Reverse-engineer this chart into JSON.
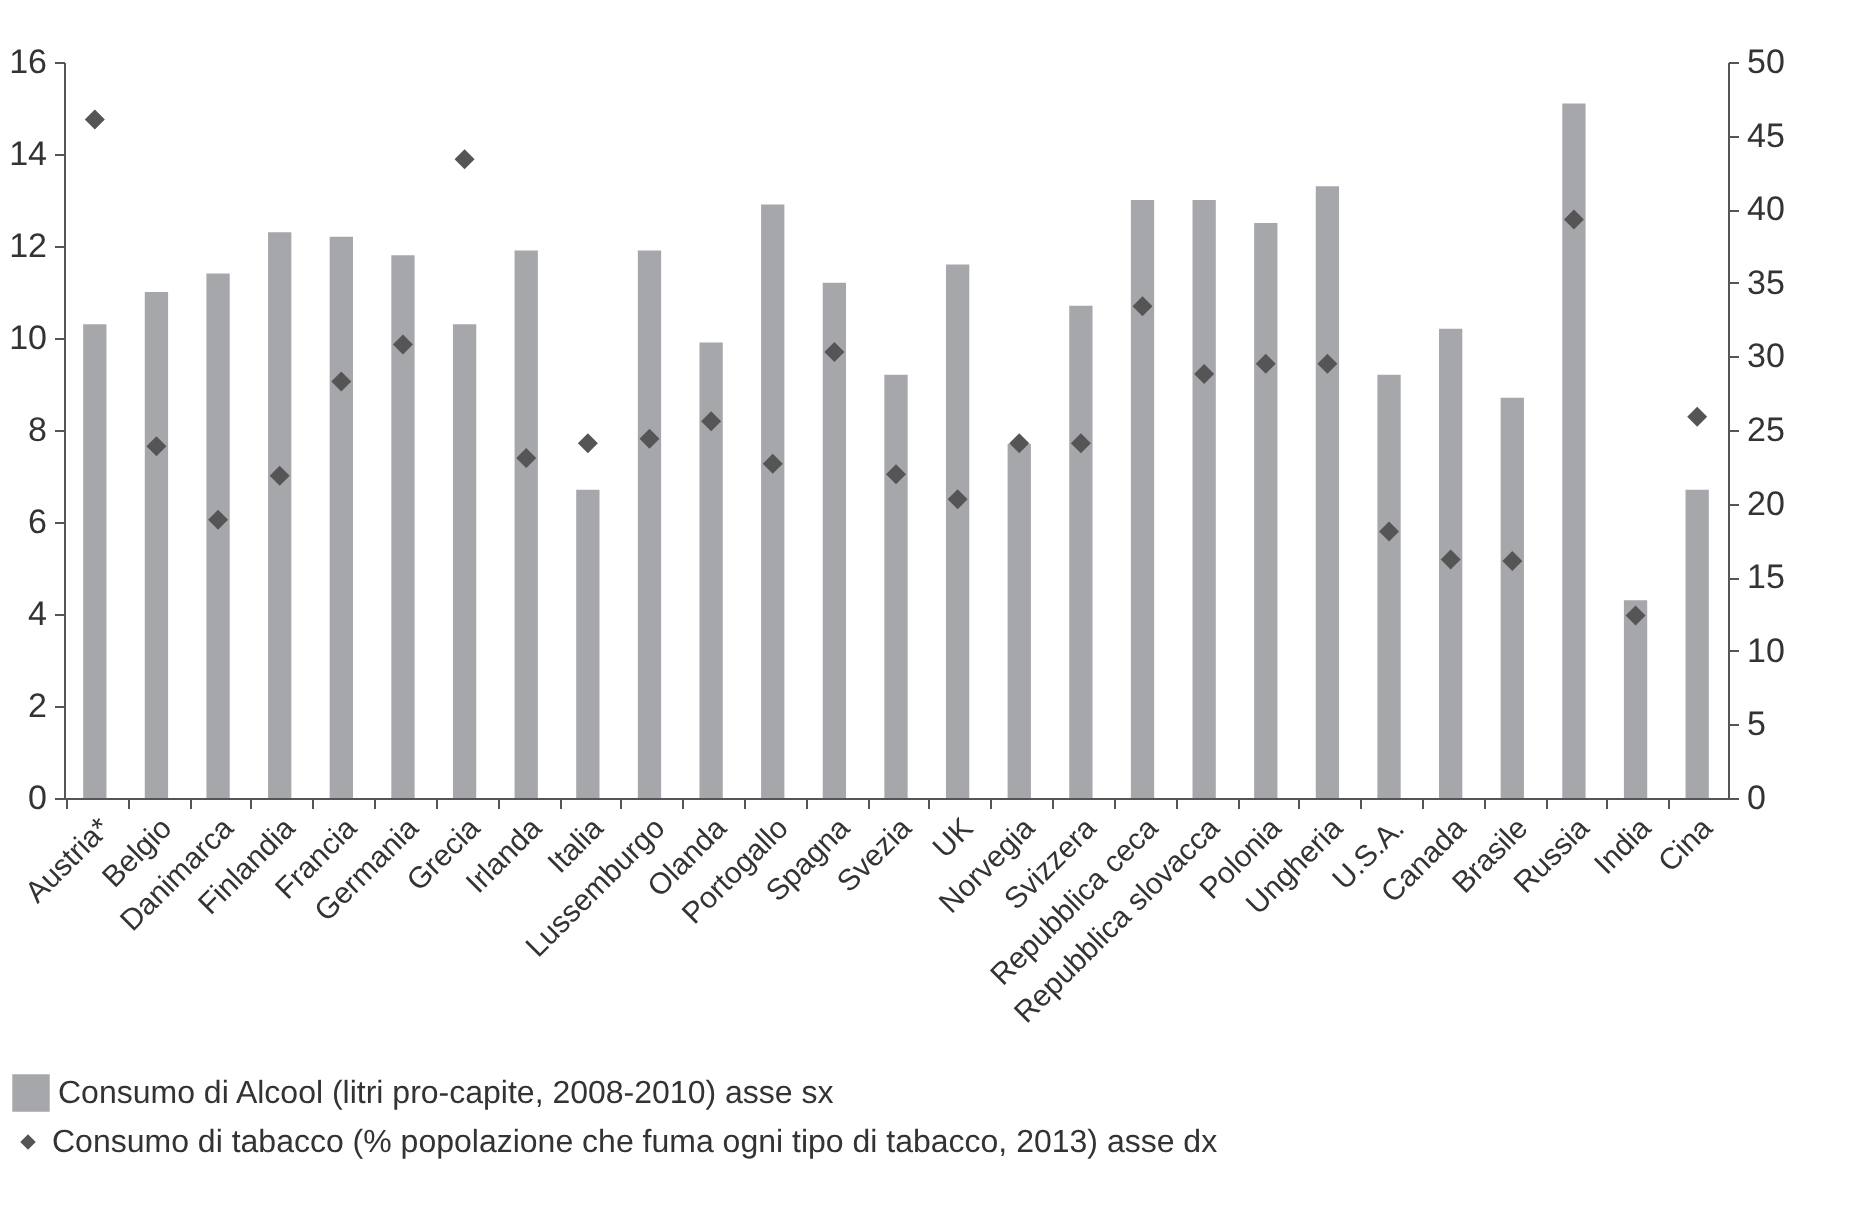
{
  "chart_data": {
    "type": "bar",
    "categories": [
      "Austria*",
      "Belgio",
      "Danimarca",
      "Finlandia",
      "Francia",
      "Germania",
      "Grecia",
      "Irlanda",
      "Italia",
      "Lussemburgo",
      "Olanda",
      "Portogallo",
      "Spagna",
      "Svezia",
      "UK",
      "Norvegia",
      "Svizzera",
      "Repubblica ceca",
      "Repubblica slovacca",
      "Polonia",
      "Ungheria",
      "U.S.A.",
      "Canada",
      "Brasile",
      "Russia",
      "India",
      "Cina"
    ],
    "series": [
      {
        "name": "Consumo di Alcool (litri pro-capite, 2008-2010) asse sx",
        "color": "#a6a7ab",
        "values": [
          10.3,
          11.0,
          11.4,
          12.3,
          12.2,
          11.8,
          10.3,
          11.9,
          6.7,
          11.9,
          9.9,
          12.9,
          11.2,
          9.2,
          11.6,
          7.7,
          10.7,
          13.0,
          13.0,
          12.5,
          13.3,
          9.2,
          10.2,
          8.7,
          15.1,
          4.3,
          6.7
        ]
      },
      {
        "name": "Consumo di tabacco (% popolazione che fuma ogni tipo di tabacco, 2013) asse dx",
        "type": "scatter",
        "axis": "y2",
        "color": "#555555",
        "values": [
          46.1,
          23.9,
          18.9,
          21.9,
          28.3,
          30.8,
          43.4,
          23.1,
          24.1,
          24.4,
          25.6,
          22.7,
          30.3,
          22.0,
          20.3,
          24.1,
          24.1,
          33.4,
          28.8,
          29.5,
          29.5,
          18.1,
          16.2,
          16.1,
          39.3,
          12.4,
          25.9
        ]
      }
    ],
    "ylim": [
      0,
      16
    ],
    "yticks": [
      0,
      2,
      4,
      6,
      8,
      10,
      12,
      14,
      16
    ],
    "y2lim": [
      0,
      50
    ],
    "y2ticks": [
      0,
      5,
      10,
      15,
      20,
      25,
      30,
      35,
      40,
      45,
      50
    ],
    "marker": "diamond",
    "legend": "bottom"
  }
}
